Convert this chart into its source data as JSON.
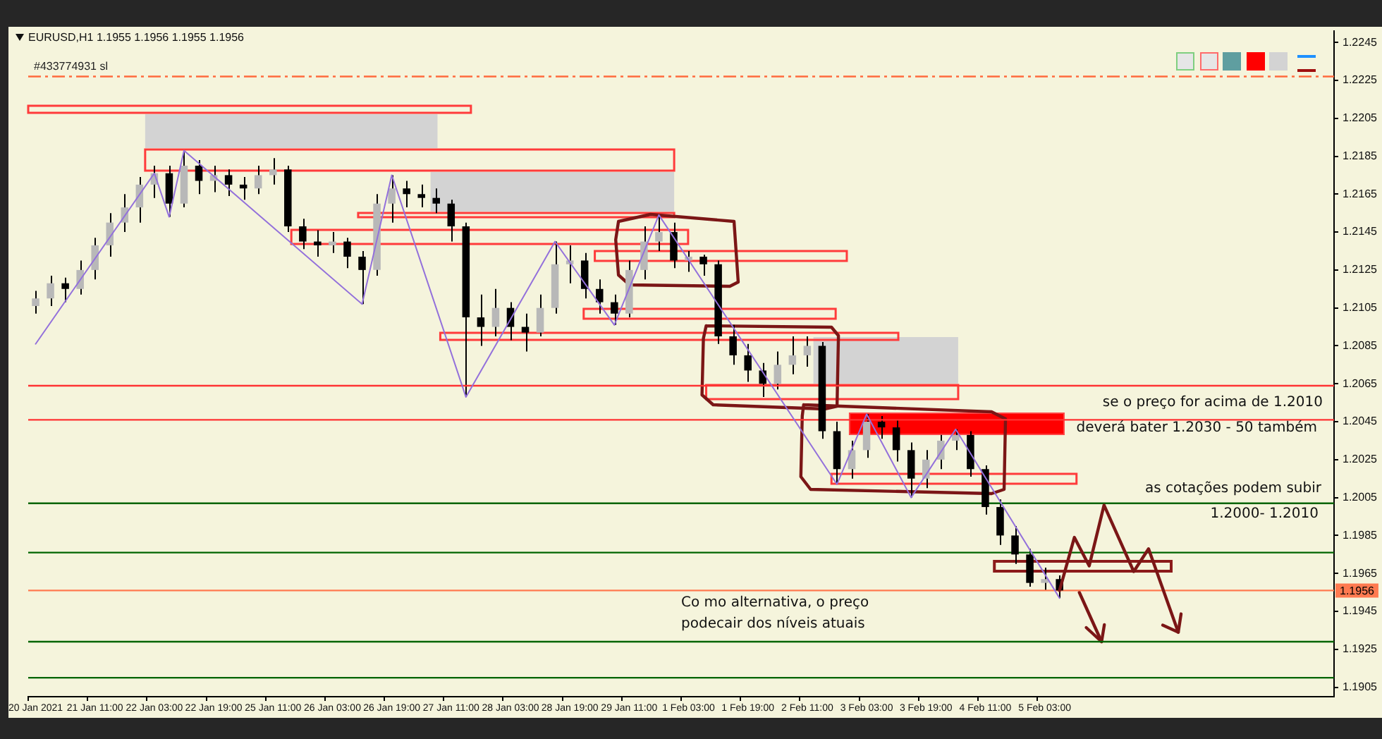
{
  "chart_data": {
    "type": "candlestick",
    "title": "EURUSD,H1  1.1955 1.1956 1.1955 1.1956",
    "categories": [
      "20 Jan 2021",
      null,
      null,
      null,
      "21 Jan 11:00",
      null,
      null,
      null,
      "22 Jan 03:00",
      null,
      null,
      null,
      "22 Jan 19:00",
      null,
      null,
      null,
      "25 Jan 11:00",
      null,
      null,
      null,
      "26 Jan 03:00",
      null,
      null,
      null,
      "26 Jan 19:00",
      null,
      null,
      null,
      "27 Jan 11:00",
      null,
      null,
      null,
      "28 Jan 03:00",
      null,
      null,
      null,
      "28 Jan 19:00",
      null,
      null,
      null,
      "29 Jan 11:00",
      null,
      null,
      null,
      "1 Feb 03:00",
      null,
      null,
      null,
      "1 Feb 19:00",
      null,
      null,
      null,
      "2 Feb 11:00",
      null,
      null,
      null,
      "3 Feb 03:00",
      null,
      null,
      null,
      "3 Feb 19:00",
      null,
      null,
      null,
      "4 Feb 11:00",
      null,
      null,
      null,
      "5 Feb 03:00",
      null,
      null,
      null,
      null,
      null,
      null,
      null,
      null,
      null,
      null,
      null,
      null,
      null,
      null,
      null,
      null,
      null,
      null,
      null
    ],
    "color": "#000000",
    "colors": [
      "#b8b8b8",
      "#b8b8b8",
      "#000000",
      "#b8b8b8",
      "#b8b8b8",
      "#b8b8b8",
      "#b8b8b8",
      "#b8b8b8",
      "#b8b8b8",
      "#000000",
      "#b8b8b8",
      "#000000",
      "#b8b8b8",
      "#000000",
      "#000000",
      "#b8b8b8",
      "#b8b8b8",
      "#000000",
      "#000000",
      "#000000",
      "#b8b8b8",
      "#000000",
      "#000000",
      "#b8b8b8",
      "#b8b8b8",
      "#000000",
      "#000000",
      "#000000",
      "#000000",
      "#000000",
      "#000000",
      "#b8b8b8",
      "#000000",
      "#000000",
      "#b8b8b8",
      "#b8b8b8",
      "#b8b8b8",
      "#000000",
      "#000000",
      "#000000",
      "#b8b8b8",
      "#b8b8b8",
      "#b8b8b8",
      "#000000",
      "#b8b8b8",
      "#000000",
      "#000000",
      "#000000",
      "#000000",
      "#000000",
      "#b8b8b8",
      "#b8b8b8",
      "#b8b8b8",
      "#000000",
      "#000000",
      "#b8b8b8",
      "#b8b8b8",
      "#000000",
      "#000000",
      "#000000",
      "#b8b8b8",
      "#b8b8b8",
      "#b8b8b8",
      "#000000",
      "#000000",
      "#000000",
      "#000000",
      "#000000",
      "#b8b8b8",
      "#000000",
      null,
      null,
      null,
      null,
      null,
      null,
      null,
      null,
      null,
      null,
      null,
      null,
      null,
      null,
      null,
      null,
      null,
      null
    ],
    "ohlc": [
      [
        1.2106,
        1.2114,
        1.2102,
        1.211
      ],
      [
        1.211,
        1.2122,
        1.2106,
        1.2118
      ],
      [
        1.2118,
        1.2121,
        1.2108,
        1.2115
      ],
      [
        1.2115,
        1.213,
        1.2112,
        1.2125
      ],
      [
        1.2125,
        1.2142,
        1.212,
        1.2138
      ],
      [
        1.2138,
        1.2155,
        1.2132,
        1.215
      ],
      [
        1.215,
        1.2165,
        1.2145,
        1.2158
      ],
      [
        1.2158,
        1.2174,
        1.215,
        1.217
      ],
      [
        1.217,
        1.218,
        1.2163,
        1.2176
      ],
      [
        1.2176,
        1.218,
        1.2153,
        1.216
      ],
      [
        1.216,
        1.2188,
        1.2158,
        1.218
      ],
      [
        1.218,
        1.2183,
        1.2165,
        1.2172
      ],
      [
        1.2172,
        1.218,
        1.2166,
        1.2175
      ],
      [
        1.2175,
        1.2178,
        1.2164,
        1.217
      ],
      [
        1.217,
        1.2174,
        1.2162,
        1.2168
      ],
      [
        1.2168,
        1.218,
        1.2165,
        1.2175
      ],
      [
        1.2175,
        1.2184,
        1.217,
        1.2178
      ],
      [
        1.2178,
        1.218,
        1.2145,
        1.2148
      ],
      [
        1.2148,
        1.2152,
        1.2136,
        1.214
      ],
      [
        1.214,
        1.2146,
        1.2132,
        1.2138
      ],
      [
        1.2138,
        1.2145,
        1.2134,
        1.214
      ],
      [
        1.214,
        1.2142,
        1.2126,
        1.2132
      ],
      [
        1.2132,
        1.2135,
        1.2107,
        1.2125
      ],
      [
        1.2125,
        1.2165,
        1.2122,
        1.216
      ],
      [
        1.216,
        1.2175,
        1.215,
        1.2168
      ],
      [
        1.2168,
        1.2172,
        1.2158,
        1.2165
      ],
      [
        1.2165,
        1.217,
        1.2158,
        1.2163
      ],
      [
        1.2163,
        1.2168,
        1.2155,
        1.216
      ],
      [
        1.216,
        1.2162,
        1.214,
        1.2148
      ],
      [
        1.2148,
        1.215,
        1.2058,
        1.21
      ],
      [
        1.21,
        1.2112,
        1.2085,
        1.2095
      ],
      [
        1.2095,
        1.2115,
        1.209,
        1.2105
      ],
      [
        1.2105,
        1.2108,
        1.2088,
        1.2095
      ],
      [
        1.2095,
        1.2102,
        1.2082,
        1.2092
      ],
      [
        1.2092,
        1.2112,
        1.209,
        1.2105
      ],
      [
        1.2105,
        1.214,
        1.2102,
        1.2128
      ],
      [
        1.2128,
        1.2138,
        1.2118,
        1.213
      ],
      [
        1.213,
        1.2134,
        1.211,
        1.2115
      ],
      [
        1.2115,
        1.212,
        1.2102,
        1.2108
      ],
      [
        1.2108,
        1.2112,
        1.2096,
        1.2102
      ],
      [
        1.2102,
        1.213,
        1.21,
        1.2125
      ],
      [
        1.2125,
        1.2148,
        1.212,
        1.214
      ],
      [
        1.214,
        1.2154,
        1.2135,
        1.2145
      ],
      [
        1.2145,
        1.215,
        1.2126,
        1.213
      ],
      [
        1.213,
        1.2135,
        1.2124,
        1.2132
      ],
      [
        1.2132,
        1.2133,
        1.2122,
        1.2128
      ],
      [
        1.2128,
        1.213,
        1.2086,
        1.209
      ],
      [
        1.209,
        1.2096,
        1.2075,
        1.208
      ],
      [
        1.208,
        1.2086,
        1.2066,
        1.2072
      ],
      [
        1.2072,
        1.2076,
        1.2058,
        1.2065
      ],
      [
        1.2065,
        1.2082,
        1.2062,
        1.2075
      ],
      [
        1.2075,
        1.209,
        1.207,
        1.208
      ],
      [
        1.208,
        1.209,
        1.2074,
        1.2085
      ],
      [
        1.2085,
        1.2087,
        1.2036,
        1.204
      ],
      [
        1.204,
        1.2045,
        1.2012,
        1.202
      ],
      [
        1.202,
        1.2035,
        1.2015,
        1.203
      ],
      [
        1.203,
        1.2049,
        1.2026,
        1.2045
      ],
      [
        1.2045,
        1.2048,
        1.2036,
        1.2042
      ],
      [
        1.2042,
        1.2046,
        1.2024,
        1.203
      ],
      [
        1.203,
        1.2034,
        1.2005,
        1.2015
      ],
      [
        1.2015,
        1.203,
        1.201,
        1.2025
      ],
      [
        1.2025,
        1.2038,
        1.202,
        1.2035
      ],
      [
        1.2035,
        1.2041,
        1.203,
        1.2038
      ],
      [
        1.2038,
        1.204,
        1.2016,
        1.202
      ],
      [
        1.202,
        1.2022,
        1.1996,
        1.2
      ],
      [
        1.2,
        1.2004,
        1.198,
        1.1985
      ],
      [
        1.1985,
        1.199,
        1.197,
        1.1975
      ],
      [
        1.1975,
        1.1978,
        1.1958,
        1.196
      ],
      [
        1.196,
        1.1968,
        1.1956,
        1.1962
      ],
      [
        1.1962,
        1.1964,
        1.1952,
        1.1956
      ],
      null,
      null,
      null,
      null,
      null,
      null,
      null,
      null,
      null,
      null,
      null,
      null,
      null,
      null,
      null,
      null,
      null,
      null
    ],
    "series": [
      {
        "type": "line",
        "color": "#9370db",
        "values": [
          1.2086,
          null,
          null,
          null,
          null,
          null,
          null,
          null,
          1.2176,
          1.2153,
          1.2188,
          null,
          null,
          null,
          null,
          null,
          null,
          null,
          null,
          null,
          null,
          null,
          1.2107,
          null,
          1.2175,
          null,
          null,
          null,
          null,
          1.2058,
          null,
          null,
          null,
          null,
          null,
          1.214,
          null,
          null,
          null,
          1.2096,
          null,
          null,
          1.2154,
          null,
          null,
          null,
          null,
          null,
          null,
          null,
          null,
          null,
          null,
          null,
          1.2012,
          null,
          1.2049,
          null,
          null,
          1.2005,
          null,
          null,
          1.2041,
          null,
          null,
          null,
          null,
          null,
          null,
          1.1952,
          null,
          null,
          null,
          null,
          null,
          null,
          null,
          null,
          null,
          null,
          null,
          null,
          null,
          null,
          null,
          null,
          null,
          null
        ]
      },
      {
        "type": "line",
        "color": "#7b1616",
        "values": [
          null,
          null,
          null,
          null,
          null,
          null,
          null,
          null,
          null,
          null,
          null,
          null,
          null,
          null,
          null,
          null,
          null,
          null,
          null,
          null,
          null,
          null,
          null,
          null,
          null,
          null,
          null,
          null,
          null,
          null,
          null,
          null,
          null,
          null,
          null,
          null,
          null,
          null,
          null,
          null,
          null,
          null,
          null,
          null,
          null,
          null,
          null,
          null,
          null,
          null,
          null,
          null,
          null,
          null,
          null,
          null,
          null,
          null,
          null,
          null,
          null,
          null,
          null,
          null,
          null,
          null,
          null,
          null,
          null,
          1.1956,
          1.1984,
          1.1969,
          1.2001,
          null,
          1.1966,
          1.1978,
          null,
          1.1934,
          null,
          null,
          null,
          null,
          null,
          null,
          null,
          null,
          null,
          null
        ]
      }
    ],
    "ylim": [
      1.19,
      1.2251
    ],
    "yticks": [
      1.1905,
      1.1925,
      1.1945,
      1.1965,
      1.1985,
      1.2005,
      1.2025,
      1.2045,
      1.2065,
      1.2085,
      1.2105,
      1.2125,
      1.2145,
      1.2165,
      1.2185,
      1.2205,
      1.2225,
      1.2245
    ],
    "ref_lines": [
      {
        "axis": "y",
        "value": 1.2227,
        "label": "#433774931 sl",
        "color": "#ff6a3d",
        "line_style": "dashed"
      },
      {
        "axis": "y",
        "value": 1.2064,
        "color": "#ff3333"
      },
      {
        "axis": "y",
        "value": 1.2046,
        "color": "#ff3333"
      },
      {
        "axis": "y",
        "value": 1.2002,
        "color": "#006400"
      },
      {
        "axis": "y",
        "value": 1.1976,
        "color": "#006400"
      },
      {
        "axis": "y",
        "value": 1.1956,
        "label": "1.1956",
        "color": "#ff7a50"
      },
      {
        "axis": "y",
        "value": 1.1929,
        "color": "#006400"
      },
      {
        "axis": "y",
        "value": 1.191,
        "color": "#006400"
      }
    ],
    "annotations": [
      "se o preço for acima de 1.2010",
      "deverá bater 1.2030 - 50 também",
      "as cotações podem subir",
      "1.2000- 1.2010",
      "Co mo alternativa, o preço",
      "podecair dos níveis atuais"
    ],
    "marker": "none",
    "legend": false
  }
}
